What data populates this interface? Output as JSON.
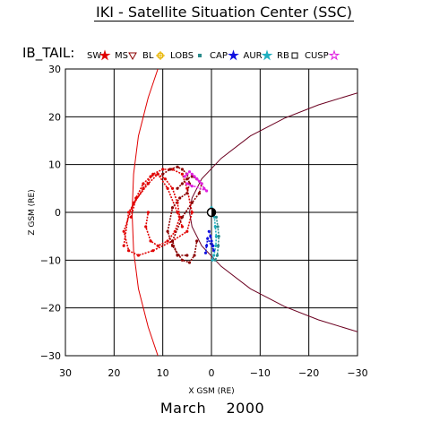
{
  "header": {
    "title": "IKI - Satellite Situation Center (SSC)",
    "date_month": "March",
    "date_year": "2000"
  },
  "chart_data": {
    "type": "scatter",
    "title": "IKI - Satellite Situation Center (SSC)",
    "subtitle": "March 2000",
    "xlabel": "X GSM (RE)",
    "ylabel": "Z GSM (RE)",
    "xlim": [
      30,
      -30
    ],
    "ylim": [
      -30,
      30
    ],
    "x_ticks": [
      30,
      20,
      10,
      0,
      -10,
      -20,
      -30
    ],
    "y_ticks": [
      30,
      20,
      10,
      0,
      -10,
      -20,
      -30
    ],
    "x_tick_labels": [
      "30",
      "20",
      "10",
      "0",
      "−10",
      "−20",
      "−30"
    ],
    "y_tick_labels": [
      "30",
      "20",
      "10",
      "0",
      "−10",
      "−20",
      "−30"
    ],
    "grid": true,
    "legend_prefix": "IB_TAIL:",
    "legend": [
      {
        "label": "SW",
        "color": "#e00000",
        "marker": "star"
      },
      {
        "label": "MS",
        "color": "#8b0000",
        "marker": "triangle-down"
      },
      {
        "label": "BL",
        "color": "#e8b400",
        "marker": "sun"
      },
      {
        "label": "LOBS",
        "color": "#2a8b8b",
        "marker": "square"
      },
      {
        "label": "CAP",
        "color": "#1010e0",
        "marker": "star"
      },
      {
        "label": "AUR",
        "color": "#20b0c0",
        "marker": "star"
      },
      {
        "label": "RB",
        "color": "#000000",
        "marker": "square-open"
      },
      {
        "label": "CUSP",
        "color": "#e020e0",
        "marker": "star-open"
      }
    ],
    "boundaries": [
      {
        "name": "bow-shock",
        "color": "#e00000",
        "points": [
          [
            11,
            -30
          ],
          [
            13,
            -24
          ],
          [
            15,
            -16
          ],
          [
            16,
            -8
          ],
          [
            16.3,
            0
          ],
          [
            16,
            8
          ],
          [
            15,
            16
          ],
          [
            13,
            24
          ],
          [
            11,
            30
          ]
        ]
      },
      {
        "name": "magnetopause",
        "color": "#6b0020",
        "points": [
          [
            -30,
            -25
          ],
          [
            -22,
            -22.5
          ],
          [
            -15,
            -19.7
          ],
          [
            -8,
            -16
          ],
          [
            -2,
            -11.3
          ],
          [
            2,
            -7
          ],
          [
            4,
            -3
          ],
          [
            4.5,
            0
          ],
          [
            4,
            3
          ],
          [
            2,
            7
          ],
          [
            -2,
            11.3
          ],
          [
            -8,
            16
          ],
          [
            -15,
            19.7
          ],
          [
            -22,
            22.5
          ],
          [
            -30,
            25
          ]
        ]
      }
    ],
    "series": [
      {
        "name": "SW",
        "color": "#e00000",
        "x": [
          18,
          17,
          14,
          12,
          10,
          8,
          6,
          5,
          4,
          5,
          8,
          12,
          15,
          17,
          18,
          16,
          13,
          11,
          9,
          7,
          6
        ],
        "y": [
          -7,
          0,
          5,
          8,
          9,
          9,
          8,
          5,
          0,
          -4,
          -6,
          -8,
          -9,
          -8,
          -4,
          2,
          6,
          8,
          5,
          0,
          -3
        ]
      },
      {
        "name": "SW",
        "color": "#e00000",
        "x": [
          16.5,
          15.5,
          14,
          12.5,
          11,
          9.5,
          8,
          7,
          6.5,
          7.5,
          9,
          11,
          12.5,
          13.5,
          13
        ],
        "y": [
          -1,
          3,
          6,
          7.5,
          8,
          7,
          5,
          2,
          -1,
          -4,
          -6,
          -7,
          -6,
          -3,
          0
        ]
      },
      {
        "name": "MS",
        "color": "#8b0000",
        "x": [
          10,
          8.5,
          7,
          6,
          5,
          4.5,
          5,
          6.5,
          8,
          9,
          8,
          6,
          4.5,
          3.5,
          3
        ],
        "y": [
          8,
          9,
          9.5,
          9,
          8,
          6,
          4,
          3,
          1,
          -4,
          -7,
          -10,
          -10.5,
          -9,
          -6
        ]
      },
      {
        "name": "MS",
        "color": "#8b0000",
        "x": [
          7,
          6,
          5,
          4,
          3,
          2,
          2.5,
          4,
          6,
          8,
          7,
          5
        ],
        "y": [
          5,
          6,
          7,
          7.5,
          7,
          6,
          4,
          2,
          -1,
          -6,
          -9,
          -9
        ]
      },
      {
        "name": "CUSP",
        "color": "#e020e0",
        "x": [
          5.5,
          5,
          4.5,
          4,
          3.5,
          3,
          2.5,
          2,
          1.5,
          1,
          5,
          4
        ],
        "y": [
          7.5,
          8,
          8.5,
          8,
          7.5,
          7,
          6.5,
          6,
          5,
          4.5,
          6,
          5.5
        ]
      },
      {
        "name": "CAP",
        "color": "#1010e0",
        "x": [
          0.5,
          0.2,
          0,
          -0.3,
          -0.5,
          0.8,
          1,
          1.2
        ],
        "y": [
          -4,
          -5,
          -6,
          -7,
          -8,
          -5.5,
          -7,
          -8.5
        ]
      },
      {
        "name": "AUR",
        "color": "#20b0c0",
        "x": [
          0,
          -0.3,
          -0.6,
          -0.8,
          -1,
          -0.9,
          -0.5,
          -0.2
        ],
        "y": [
          1,
          0,
          -1,
          -3,
          -5,
          -7,
          -9,
          -10
        ]
      },
      {
        "name": "LOBS",
        "color": "#2a8b8b",
        "x": [
          -1,
          -1.3,
          -1.5,
          -1.4,
          -1.2,
          -0.8
        ],
        "y": [
          -1,
          -3,
          -5,
          -7,
          -9,
          -10
        ]
      },
      {
        "name": "BL",
        "color": "#e8b400",
        "x": [
          0.2,
          0.4
        ],
        "y": [
          0.5,
          -0.3
        ]
      }
    ],
    "earth": {
      "x": 0,
      "y": 0
    }
  }
}
